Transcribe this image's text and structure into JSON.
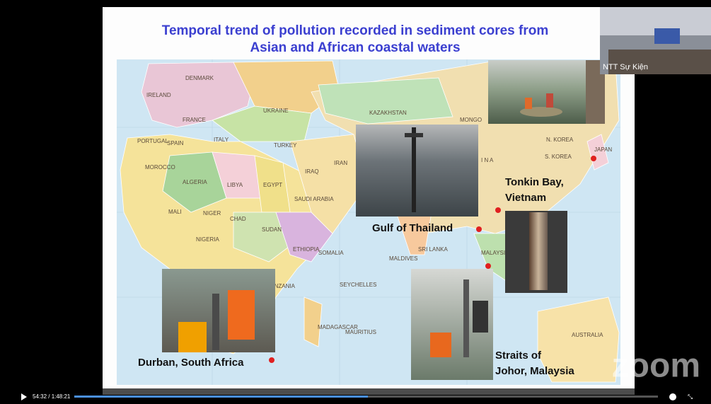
{
  "slide": {
    "title": [
      "Temporal trend of pollution recorded in sediment cores from",
      "Asian and African coastal waters"
    ],
    "map_labels": [
      "DENMARK",
      "IRELAND",
      "FRANCE",
      "SPAIN",
      "PORTUGAL",
      "UKRAINE",
      "ITALY",
      "TURKEY",
      "MOROCCO",
      "ALGERIA",
      "LIBYA",
      "EGYPT",
      "KAZAKHSTAN",
      "MONGO",
      "IRAN",
      "IRAQ",
      "SAUDI ARABIA",
      "MALI",
      "NIGER",
      "CHAD",
      "SUDAN",
      "NIGERIA",
      "ETHIOPIA",
      "SOMALIA",
      "I N A",
      "N. KOREA",
      "S. KOREA",
      "JAPAN",
      "SRI LANKA",
      "MALAYSIA",
      "MALDIVES",
      "SEYCHELLES",
      "MADAGASCAR",
      "MAURITIUS",
      "AUSTRALIA",
      "TANZANIA"
    ],
    "sites": [
      {
        "lines": [
          "Gulf of Thailand"
        ]
      },
      {
        "lines": [
          "Tonkin Bay,",
          "Vietnam"
        ]
      },
      {
        "lines": [
          "Durban, South Africa"
        ]
      },
      {
        "lines": [
          "Straits of",
          "Johor, Malaysia"
        ]
      }
    ]
  },
  "video": {
    "participant": "NTT Sự Kiện",
    "watermark": "zoom",
    "time": "54:32 / 1:48:21"
  }
}
